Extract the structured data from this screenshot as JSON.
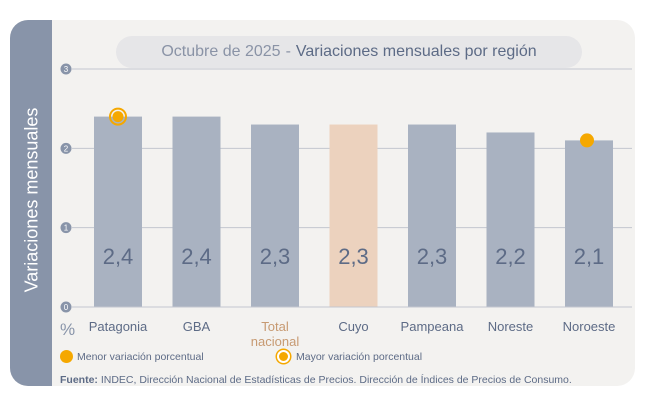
{
  "header": {
    "date": "Octubre de 2025",
    "separator": "-",
    "title": "Variaciones mensuales por región"
  },
  "ylabel": "Variaciones mensuales",
  "unit_symbol": "%",
  "legend": {
    "min_label": "Menor variación porcentual",
    "max_label": "Mayor variación porcentual"
  },
  "source": {
    "prefix": "Fuente:",
    "text": "INDEC, Dirección Nacional de Estadísticas de Precios. Dirección de Índices de Precios de Consumo."
  },
  "colors": {
    "bar": "#a9b2c1",
    "bar_highlight": "#ecd2be",
    "value_text": "#5d6b86",
    "axis_label": "#5d6b86",
    "highlight_label": "#c79a72",
    "marker": "#f5a800",
    "grid": "#c3c7cf",
    "tick_bubble": "#8894a9"
  },
  "chart_data": {
    "type": "bar",
    "title": "Variaciones mensuales por región",
    "subtitle": "Octubre de 2025",
    "xlabel": "",
    "ylabel": "Variaciones mensuales",
    "unit": "%",
    "ylim": [
      0,
      3
    ],
    "yticks": [
      0,
      1,
      2,
      3
    ],
    "grid": true,
    "categories": [
      "Patagonia",
      "GBA",
      "Total nacional",
      "Cuyo",
      "Pampeana",
      "Noreste",
      "Noroeste"
    ],
    "category_labels": [
      [
        "Patagonia"
      ],
      [
        "GBA"
      ],
      [
        "Total",
        "nacional"
      ],
      [
        "Cuyo"
      ],
      [
        "Pampeana"
      ],
      [
        "Noreste"
      ],
      [
        "Noroeste"
      ]
    ],
    "values": [
      2.4,
      2.4,
      2.3,
      2.3,
      2.3,
      2.2,
      2.1
    ],
    "value_labels": [
      "2,4",
      "2,4",
      "2,3",
      "2,3",
      "2,3",
      "2,2",
      "2,1"
    ],
    "highlighted_category": "Total nacional",
    "highlighted_bar": "Cuyo",
    "max_marker_category": "Patagonia",
    "min_marker_category": "Noroeste"
  }
}
